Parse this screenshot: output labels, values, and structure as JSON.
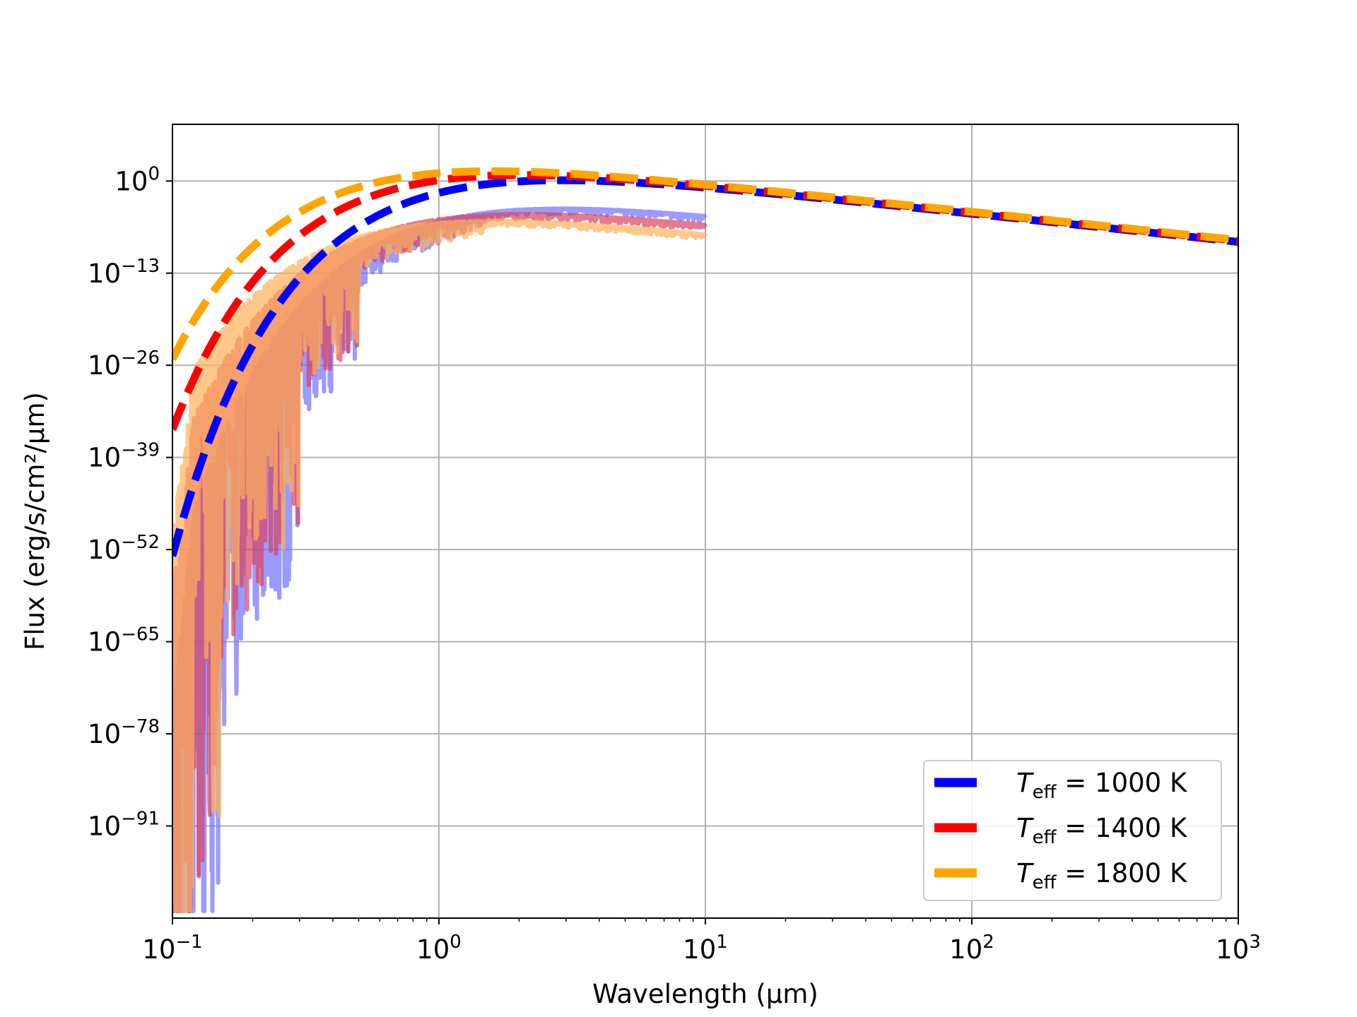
{
  "chart_data": {
    "type": "line",
    "xlabel": "Wavelength (μm)",
    "ylabel": "Flux (erg/s/cm²/μm)",
    "xscale": "log",
    "yscale": "log",
    "xlim": [
      0.1,
      1000
    ],
    "ylim_exponent": [
      -104,
      8
    ],
    "x_ticks": [
      {
        "base": "10",
        "exp": "−1",
        "value": 0.1
      },
      {
        "base": "10",
        "exp": "0",
        "value": 1
      },
      {
        "base": "10",
        "exp": "1",
        "value": 10
      },
      {
        "base": "10",
        "exp": "2",
        "value": 100
      },
      {
        "base": "10",
        "exp": "3",
        "value": 1000
      }
    ],
    "y_ticks": [
      {
        "base": "10",
        "exp": "0",
        "value_exp": 0
      },
      {
        "base": "10",
        "exp": "−13",
        "value_exp": -13
      },
      {
        "base": "10",
        "exp": "−26",
        "value_exp": -26
      },
      {
        "base": "10",
        "exp": "−39",
        "value_exp": -39
      },
      {
        "base": "10",
        "exp": "−52",
        "value_exp": -52
      },
      {
        "base": "10",
        "exp": "−65",
        "value_exp": -65
      },
      {
        "base": "10",
        "exp": "−78",
        "value_exp": -78
      },
      {
        "base": "10",
        "exp": "−91",
        "value_exp": -91
      }
    ],
    "grid": true,
    "legend_position": "lower-right",
    "series": [
      {
        "name": "T_eff = 1000 K",
        "label_sym": "T",
        "label_sub": "eff",
        "label_rest": " = 1000 K",
        "teff": 1000,
        "color": "#0000ff",
        "style": "dashed"
      },
      {
        "name": "T_eff = 1400 K",
        "label_sym": "T",
        "label_sub": "eff",
        "label_rest": " = 1400 K",
        "teff": 1400,
        "color": "#ff0000",
        "style": "dashed"
      },
      {
        "name": "T_eff = 1800 K",
        "label_sym": "T",
        "label_sub": "eff",
        "label_rest": " = 1800 K",
        "teff": 1800,
        "color": "#ffa500",
        "style": "dashed"
      }
    ],
    "spectra": [
      {
        "teff": 1000,
        "color": "#6f6fff"
      },
      {
        "teff": 1400,
        "color": "#d9435f"
      },
      {
        "teff": 1800,
        "color": "#ffb15a"
      }
    ]
  }
}
